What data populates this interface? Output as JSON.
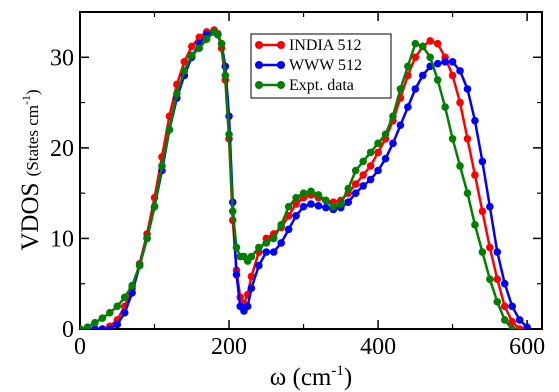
{
  "chart_data": {
    "type": "line",
    "xlabel": "ω (cm",
    "xlabel_sup": "-1",
    "xlabel_tail": ")",
    "ylabel": "VDOS",
    "ylabel_unit": "(States cm",
    "ylabel_unit_sup": "-1",
    "ylabel_unit_tail": ")",
    "xlim": [
      0,
      620
    ],
    "ylim": [
      0,
      35
    ],
    "xticks": [
      0,
      200,
      400,
      600
    ],
    "yticks": [
      0,
      10,
      20,
      30
    ],
    "grid": false,
    "legend_position": "top-center",
    "series": [
      {
        "name": "INDIA 512",
        "color": "#ff0000",
        "x": [
          0,
          10,
          20,
          30,
          40,
          50,
          60,
          70,
          80,
          90,
          100,
          110,
          120,
          130,
          140,
          150,
          160,
          170,
          180,
          185,
          190,
          195,
          200,
          205,
          210,
          215,
          220,
          225,
          230,
          240,
          250,
          260,
          270,
          280,
          290,
          300,
          310,
          320,
          330,
          340,
          350,
          360,
          370,
          380,
          390,
          400,
          410,
          420,
          430,
          440,
          450,
          460,
          470,
          480,
          490,
          500,
          510,
          520,
          530,
          540,
          550,
          560,
          570,
          580,
          590,
          600
        ],
        "y": [
          0,
          0,
          0,
          0,
          0.3,
          1.0,
          2.5,
          4.5,
          7.2,
          10.5,
          14.5,
          19.0,
          23.5,
          27.0,
          29.5,
          31.2,
          32.2,
          32.8,
          33.0,
          32.6,
          31.0,
          27.5,
          21.0,
          12.0,
          6.5,
          3.5,
          2.8,
          3.8,
          5.8,
          8.5,
          10.0,
          10.5,
          11.2,
          12.5,
          13.8,
          14.5,
          14.8,
          14.5,
          14.2,
          14.0,
          14.2,
          15.0,
          16.0,
          17.0,
          18.0,
          19.5,
          21.0,
          23.0,
          25.5,
          28.0,
          30.0,
          31.2,
          31.8,
          31.5,
          30.0,
          28.0,
          25.0,
          21.0,
          17.0,
          13.0,
          9.0,
          5.5,
          2.5,
          0.8,
          0,
          0
        ]
      },
      {
        "name": "WWW 512",
        "color": "#0000ff",
        "x": [
          0,
          10,
          20,
          30,
          40,
          50,
          60,
          70,
          80,
          90,
          100,
          110,
          120,
          130,
          140,
          150,
          160,
          170,
          180,
          185,
          190,
          195,
          200,
          205,
          210,
          215,
          220,
          225,
          230,
          240,
          250,
          260,
          270,
          280,
          290,
          300,
          310,
          320,
          330,
          340,
          350,
          360,
          370,
          380,
          390,
          400,
          410,
          420,
          430,
          440,
          450,
          460,
          470,
          480,
          490,
          500,
          510,
          520,
          530,
          540,
          550,
          560,
          570,
          580,
          590,
          600
        ],
        "y": [
          0,
          0,
          0,
          0,
          0,
          0.5,
          1.8,
          4.0,
          7.0,
          10.0,
          13.5,
          17.5,
          22.0,
          25.5,
          28.0,
          30.0,
          31.5,
          32.5,
          32.8,
          32.5,
          31.5,
          29.0,
          23.5,
          14.0,
          6.0,
          2.5,
          2.0,
          2.5,
          4.5,
          7.0,
          8.5,
          8.5,
          9.5,
          11.0,
          12.5,
          13.5,
          13.8,
          13.6,
          13.4,
          13.2,
          13.4,
          14.0,
          15.0,
          15.8,
          16.5,
          17.5,
          18.8,
          20.5,
          22.5,
          24.5,
          26.5,
          28.0,
          29.0,
          29.3,
          29.5,
          29.5,
          28.5,
          26.5,
          23.0,
          18.5,
          13.5,
          8.5,
          5.0,
          2.5,
          1.0,
          0.2
        ]
      },
      {
        "name": "Expt. data",
        "color": "#008000",
        "x": [
          0,
          10,
          20,
          30,
          40,
          50,
          60,
          70,
          80,
          90,
          100,
          110,
          120,
          130,
          140,
          150,
          160,
          170,
          180,
          185,
          190,
          195,
          200,
          205,
          210,
          215,
          220,
          225,
          230,
          240,
          250,
          260,
          270,
          280,
          290,
          300,
          310,
          320,
          330,
          340,
          350,
          360,
          370,
          380,
          390,
          400,
          410,
          420,
          430,
          440,
          450,
          460,
          470,
          480,
          490,
          500,
          510,
          520,
          530,
          540,
          550,
          560,
          570,
          580
        ],
        "y": [
          0,
          0.2,
          0.7,
          1.2,
          1.8,
          2.5,
          3.5,
          4.8,
          7.0,
          10.0,
          13.5,
          18.0,
          22.0,
          26.0,
          28.5,
          30.2,
          31.0,
          32.0,
          32.8,
          32.5,
          31.5,
          28.0,
          21.5,
          13.0,
          9.0,
          8.0,
          8.0,
          7.5,
          8.0,
          9.0,
          9.5,
          10.0,
          11.5,
          13.5,
          14.5,
          15.0,
          15.2,
          14.8,
          14.2,
          13.5,
          13.8,
          15.5,
          17.5,
          18.5,
          19.5,
          20.5,
          21.5,
          23.5,
          26.5,
          29.0,
          31.5,
          31.2,
          30.0,
          27.5,
          24.5,
          21.0,
          18.0,
          15.0,
          11.5,
          8.5,
          5.5,
          3.0,
          1.0,
          0
        ]
      }
    ]
  }
}
